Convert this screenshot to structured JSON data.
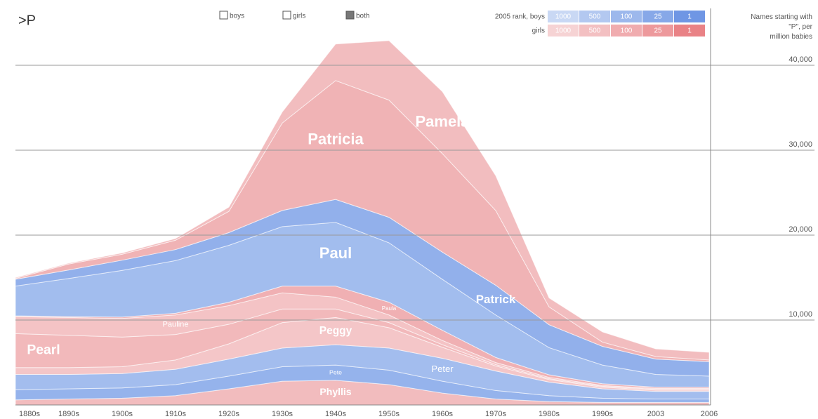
{
  "query": ">P",
  "controls": {
    "options": [
      "boys",
      "girls",
      "both"
    ],
    "selected": "both"
  },
  "rank_legend": {
    "boys_label": "2005 rank, boys",
    "girls_label": "girls",
    "ranks": [
      1000,
      500,
      100,
      25,
      1
    ],
    "boys_colors": [
      "#c9d8f4",
      "#b3c8f0",
      "#9db8ec",
      "#87a8e8",
      "#6f96e4"
    ],
    "girls_colors": [
      "#f6d3d4",
      "#f3c0c2",
      "#f0acaf",
      "#ed999c",
      "#e98286"
    ]
  },
  "chart_data": {
    "type": "area",
    "stacked": true,
    "y_label": "Names starting with \"P\", per million babies",
    "categories": [
      "1880s",
      "1890s",
      "1900s",
      "1910s",
      "1920s",
      "1930s",
      "1940s",
      "1950s",
      "1960s",
      "1970s",
      "1980s",
      "1990s",
      "2003",
      "2006"
    ],
    "ylim": [
      0,
      40000
    ],
    "yticks": [
      {
        "value": 10000,
        "label": "10,000"
      },
      {
        "value": 20000,
        "label": "20,000"
      },
      {
        "value": 30000,
        "label": "30,000"
      },
      {
        "value": 40000,
        "label": "40,000"
      }
    ],
    "grid": true,
    "series": [
      {
        "name": "Phyllis",
        "color": "#f2bcbe",
        "values": [
          600,
          700,
          800,
          1100,
          1900,
          2800,
          2900,
          2400,
          1400,
          700,
          400,
          300,
          300,
          300
        ]
      },
      {
        "name": "Pete",
        "color": "#95b3ec",
        "values": [
          1200,
          1200,
          1200,
          1300,
          1500,
          1700,
          1800,
          1700,
          1400,
          1000,
          700,
          500,
          400,
          400
        ]
      },
      {
        "name": "Peter",
        "color": "#a3bdee",
        "values": [
          1800,
          1700,
          1700,
          1800,
          2000,
          2200,
          2400,
          2600,
          2700,
          2300,
          1600,
          1100,
          900,
          900
        ]
      },
      {
        "name": "Peggy",
        "color": "#f4c6c8",
        "values": [
          800,
          800,
          800,
          1100,
          1800,
          3000,
          3200,
          2400,
          1300,
          600,
          300,
          200,
          150,
          150
        ]
      },
      {
        "name": "Pearl",
        "color": "#f2b9bb",
        "values": [
          4000,
          3800,
          3500,
          3000,
          2300,
          1600,
          1000,
          600,
          300,
          150,
          100,
          100,
          100,
          100
        ]
      },
      {
        "name": "Pauline",
        "color": "#f4c3c5",
        "values": [
          2000,
          2100,
          2200,
          2300,
          2200,
          1900,
          1400,
          900,
          500,
          250,
          150,
          100,
          100,
          100
        ]
      },
      {
        "name": "Paula",
        "color": "#f0b0b3",
        "values": [
          100,
          100,
          150,
          200,
          400,
          800,
          1300,
          1500,
          1200,
          600,
          300,
          200,
          150,
          150
        ]
      },
      {
        "name": "Paul",
        "color": "#a2bdee",
        "values": [
          3500,
          4500,
          5500,
          6200,
          6700,
          7000,
          7500,
          7000,
          6000,
          5000,
          3200,
          2200,
          1500,
          1300
        ]
      },
      {
        "name": "Patrick",
        "color": "#92b0eb",
        "values": [
          800,
          1000,
          1200,
          1300,
          1500,
          1900,
          2700,
          3000,
          3200,
          3500,
          2700,
          2200,
          1800,
          1700
        ]
      },
      {
        "name": "Patricia",
        "color": "#f0b3b5",
        "values": [
          100,
          700,
          700,
          1100,
          2500,
          10300,
          14000,
          13800,
          11600,
          8800,
          2100,
          500,
          300,
          200
        ]
      },
      {
        "name": "Pamela",
        "color": "#f2bdbf",
        "values": [
          100,
          100,
          150,
          200,
          500,
          1300,
          4300,
          7000,
          7300,
          4100,
          1050,
          1200,
          900,
          900
        ]
      }
    ]
  }
}
